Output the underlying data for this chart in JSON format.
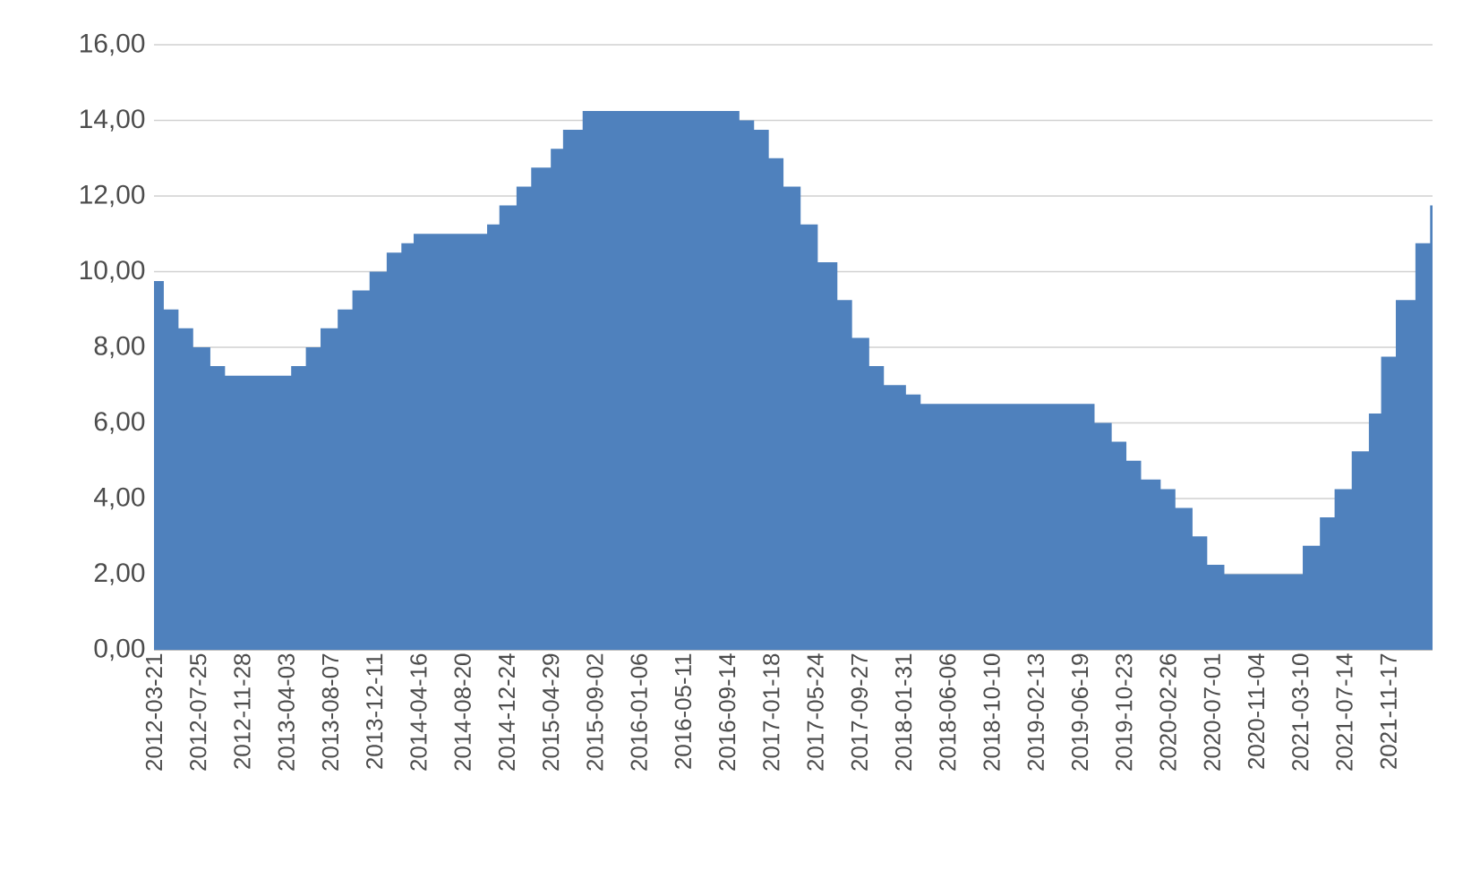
{
  "chart_data": {
    "type": "area",
    "color": "#4f81bd",
    "grid": "y",
    "x": [
      "2012-03-21",
      "2012-04-18",
      "2012-04-18",
      "2012-05-30",
      "2012-05-30",
      "2012-07-11",
      "2012-07-11",
      "2012-08-29",
      "2012-08-29",
      "2012-10-10",
      "2012-10-10",
      "2013-04-17",
      "2013-04-17",
      "2013-05-29",
      "2013-05-29",
      "2013-07-10",
      "2013-07-10",
      "2013-08-28",
      "2013-08-28",
      "2013-10-09",
      "2013-10-09",
      "2013-11-27",
      "2013-11-27",
      "2014-01-15",
      "2014-01-15",
      "2014-02-26",
      "2014-02-26",
      "2014-04-02",
      "2014-04-02",
      "2014-10-29",
      "2014-10-29",
      "2014-12-03",
      "2014-12-03",
      "2015-01-21",
      "2015-01-21",
      "2015-03-04",
      "2015-03-04",
      "2015-04-29",
      "2015-04-29",
      "2015-06-03",
      "2015-06-03",
      "2015-07-29",
      "2015-07-29",
      "2016-10-19",
      "2016-10-19",
      "2016-11-30",
      "2016-11-30",
      "2017-01-11",
      "2017-01-11",
      "2017-02-22",
      "2017-02-22",
      "2017-04-12",
      "2017-04-12",
      "2017-05-31",
      "2017-05-31",
      "2017-07-26",
      "2017-07-26",
      "2017-09-06",
      "2017-09-06",
      "2017-10-25",
      "2017-10-25",
      "2017-12-06",
      "2017-12-06",
      "2018-02-07",
      "2018-02-07",
      "2018-03-21",
      "2018-03-21",
      "2019-07-31",
      "2019-07-31",
      "2019-09-18",
      "2019-09-18",
      "2019-10-30",
      "2019-10-30",
      "2019-12-11",
      "2019-12-11",
      "2020-02-05",
      "2020-02-05",
      "2020-03-18",
      "2020-03-18",
      "2020-05-06",
      "2020-05-06",
      "2020-06-17",
      "2020-06-17",
      "2020-08-05",
      "2020-08-05",
      "2021-03-17",
      "2021-03-17",
      "2021-05-05",
      "2021-05-05",
      "2021-06-16",
      "2021-06-16",
      "2021-08-04",
      "2021-08-04",
      "2021-09-22",
      "2021-09-22",
      "2021-10-27",
      "2021-10-27",
      "2021-12-08",
      "2021-12-08",
      "2022-02-02",
      "2022-02-02",
      "2022-03-16",
      "2022-03-16",
      "2022-03-23"
    ],
    "values": [
      9.75,
      9.75,
      9.0,
      9.0,
      8.5,
      8.5,
      8.0,
      8.0,
      7.5,
      7.5,
      7.25,
      7.25,
      7.5,
      7.5,
      8.0,
      8.0,
      8.5,
      8.5,
      9.0,
      9.0,
      9.5,
      9.5,
      10.0,
      10.0,
      10.5,
      10.5,
      10.75,
      10.75,
      11.0,
      11.0,
      11.25,
      11.25,
      11.75,
      11.75,
      12.25,
      12.25,
      12.75,
      12.75,
      13.25,
      13.25,
      13.75,
      13.75,
      14.25,
      14.25,
      14.0,
      14.0,
      13.75,
      13.75,
      13.0,
      13.0,
      12.25,
      12.25,
      11.25,
      11.25,
      10.25,
      10.25,
      9.25,
      9.25,
      8.25,
      8.25,
      7.5,
      7.5,
      7.0,
      7.0,
      6.75,
      6.75,
      6.5,
      6.5,
      6.0,
      6.0,
      5.5,
      5.5,
      5.0,
      5.0,
      4.5,
      4.5,
      4.25,
      4.25,
      3.75,
      3.75,
      3.0,
      3.0,
      2.25,
      2.25,
      2.0,
      2.0,
      2.75,
      2.75,
      3.5,
      3.5,
      4.25,
      4.25,
      5.25,
      5.25,
      6.25,
      6.25,
      7.75,
      7.75,
      9.25,
      9.25,
      10.75,
      10.75,
      11.75,
      11.75
    ],
    "xlim": [
      "2012-03-21",
      "2022-03-23"
    ],
    "xticks": [
      "2012-03-21",
      "2012-07-25",
      "2012-11-28",
      "2013-04-03",
      "2013-08-07",
      "2013-12-11",
      "2014-04-16",
      "2014-08-20",
      "2014-12-24",
      "2015-04-29",
      "2015-09-02",
      "2016-01-06",
      "2016-05-11",
      "2016-09-14",
      "2017-01-18",
      "2017-05-24",
      "2017-09-27",
      "2018-01-31",
      "2018-06-06",
      "2018-10-10",
      "2019-02-13",
      "2019-06-19",
      "2019-10-23",
      "2020-02-26",
      "2020-07-01",
      "2020-11-04",
      "2021-03-10",
      "2021-07-14",
      "2021-11-17"
    ],
    "ylim": [
      0,
      16
    ],
    "yticks": [
      {
        "value": 0,
        "label": "0,00"
      },
      {
        "value": 2,
        "label": "2,00"
      },
      {
        "value": 4,
        "label": "4,00"
      },
      {
        "value": 6,
        "label": "6,00"
      },
      {
        "value": 8,
        "label": "8,00"
      },
      {
        "value": 10,
        "label": "10,00"
      },
      {
        "value": 12,
        "label": "12,00"
      },
      {
        "value": 14,
        "label": "14,00"
      },
      {
        "value": 16,
        "label": "16,00"
      }
    ]
  }
}
